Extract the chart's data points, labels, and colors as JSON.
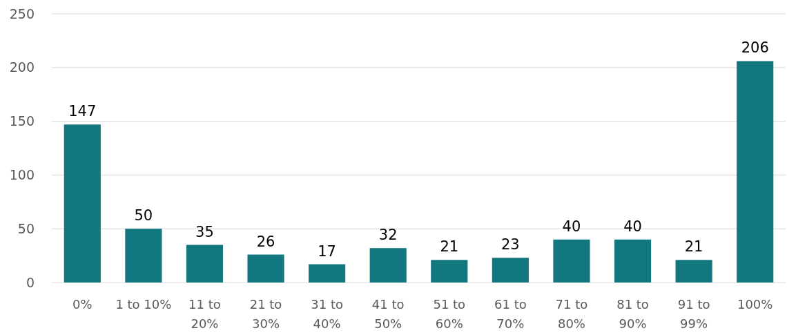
{
  "chart_data": {
    "type": "bar",
    "categories": [
      "0%",
      "1 to 10%",
      "11 to 20%",
      "21 to 30%",
      "31 to 40%",
      "41 to 50%",
      "51 to 60%",
      "61 to 70%",
      "71 to 80%",
      "81 to 90%",
      "91 to 99%",
      "100%"
    ],
    "values": [
      147,
      50,
      35,
      26,
      17,
      32,
      21,
      23,
      40,
      40,
      21,
      206
    ],
    "color": "#13777f",
    "ylim": [
      0,
      250
    ],
    "yticks": [
      0,
      50,
      100,
      150,
      200,
      250
    ],
    "grid": "y",
    "data_labels": true
  }
}
